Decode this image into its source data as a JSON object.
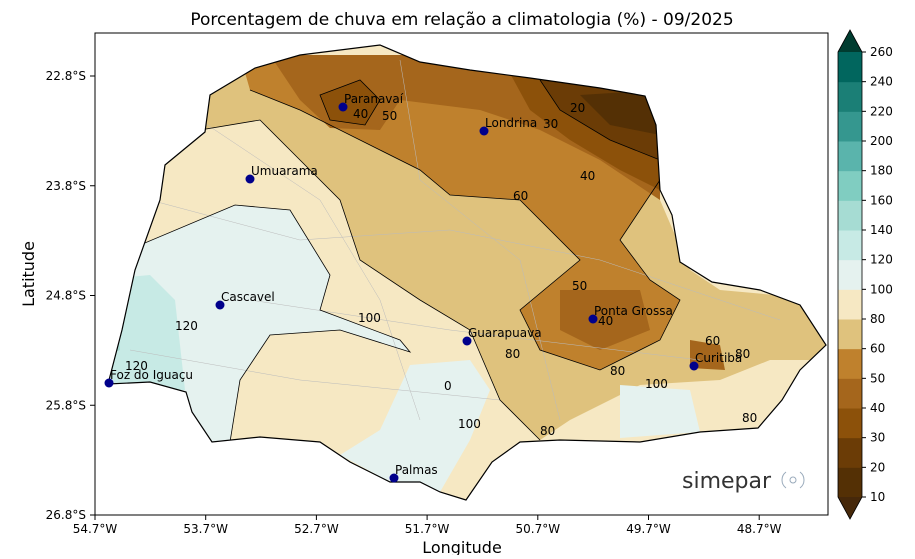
{
  "title": "Porcentagem de chuva em relação a climatologia (%) - 09/2025",
  "xlabel": "Longitude",
  "ylabel": "Latitude",
  "xticks": [
    "54.7°W",
    "53.7°W",
    "52.7°W",
    "51.7°W",
    "50.7°W",
    "49.7°W",
    "48.7°W"
  ],
  "yticks": [
    "22.8°S",
    "23.8°S",
    "24.8°S",
    "25.8°S",
    "26.8°S"
  ],
  "cities": [
    "Paranavaí",
    "Londrina",
    "Umuarama",
    "Cascavel",
    "Guarapuava",
    "Ponta Grossa",
    "Curitiba",
    "Foz do Iguaçu",
    "Palmas"
  ],
  "contour_labels": [
    "40",
    "50",
    "30",
    "20",
    "40",
    "60",
    "50",
    "40",
    "120",
    "120",
    "100",
    "80",
    "0",
    "100",
    "80",
    "60",
    "80",
    "80",
    "100",
    "80"
  ],
  "colorbar": {
    "ticks": [
      10,
      20,
      30,
      40,
      50,
      60,
      80,
      100,
      120,
      140,
      160,
      180,
      200,
      220,
      240,
      260
    ],
    "colors": [
      "#543005",
      "#6b3c06",
      "#8c510a",
      "#a5661c",
      "#bf812d",
      "#dfc27d",
      "#f6e8c3",
      "#e5f2ef",
      "#c7eae5",
      "#a6dcd3",
      "#80cdc1",
      "#5ab4ac",
      "#35978f",
      "#1b7f76",
      "#01665e"
    ],
    "under": "#46280a",
    "over": "#003c30"
  },
  "logo": "simepar"
}
